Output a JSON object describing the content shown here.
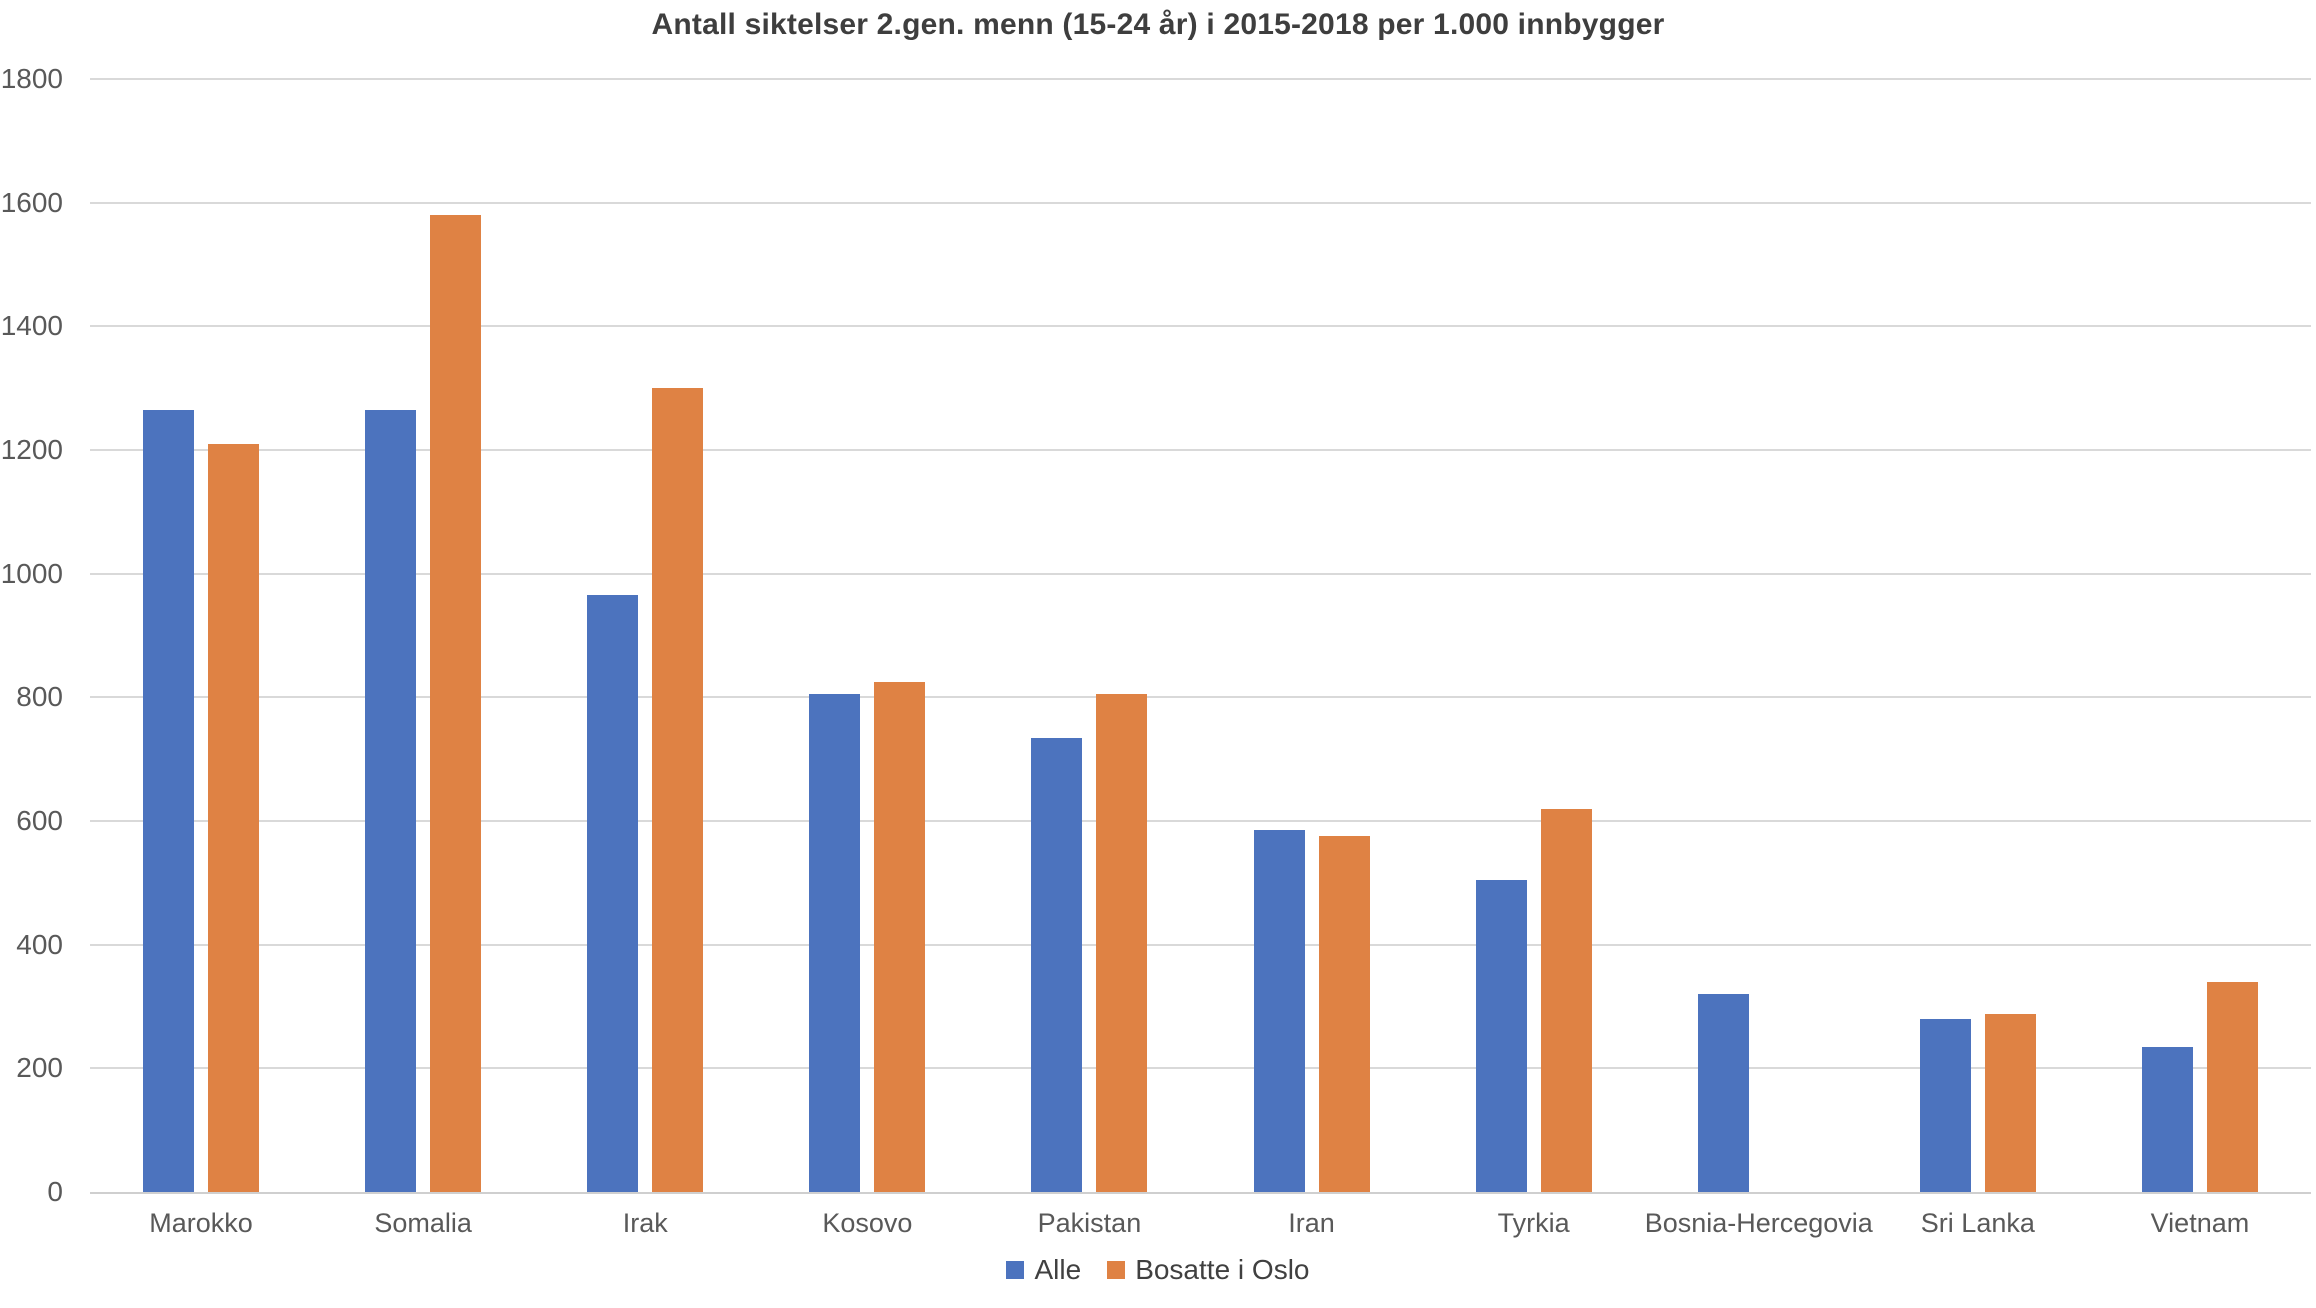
{
  "chart_data": {
    "type": "bar",
    "title": "Antall siktelser 2.gen. menn (15-24 år) i 2015-2018 per 1.000 innbygger",
    "categories": [
      "Marokko",
      "Somalia",
      "Irak",
      "Kosovo",
      "Pakistan",
      "Iran",
      "Tyrkia",
      "Bosnia-Hercegovia",
      "Sri Lanka",
      "Vietnam"
    ],
    "series": [
      {
        "name": "Alle",
        "color": "#4c73be",
        "values": [
          1265,
          1265,
          965,
          805,
          735,
          585,
          505,
          320,
          280,
          235
        ]
      },
      {
        "name": "Bosatte i Oslo",
        "color": "#df8244",
        "values": [
          1210,
          1580,
          1300,
          825,
          805,
          575,
          620,
          0,
          288,
          340
        ]
      }
    ],
    "xlabel": "",
    "ylabel": "",
    "ylim": [
      0,
      1800
    ],
    "yticks": [
      0,
      200,
      400,
      600,
      800,
      1000,
      1200,
      1400,
      1600,
      1800
    ],
    "grid": true,
    "gridline_color": "#d9d9d9",
    "axis_line_color": "#cfcfcf",
    "label_color": "#595959",
    "title_color": "#3e3e3e",
    "legend_position": "bottom"
  }
}
